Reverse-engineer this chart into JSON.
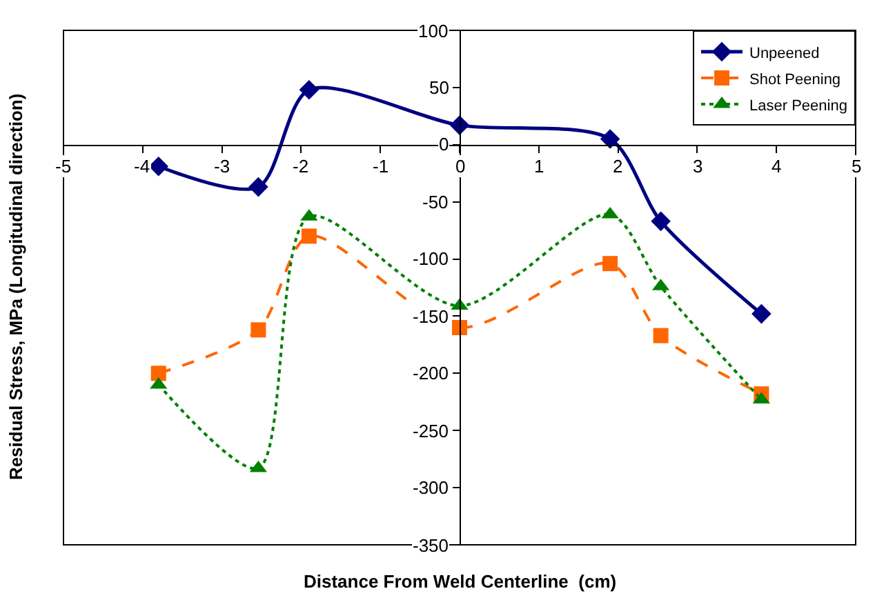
{
  "chart_data": {
    "type": "line",
    "xlabel": "Distance From Weld Centerline  (cm)",
    "ylabel": "Residual Stress, MPa (Longitudinal direction)",
    "xlim": [
      -5,
      5
    ],
    "xticks": [
      -5,
      -4,
      -3,
      -2,
      -1,
      0,
      1,
      2,
      3,
      4,
      5
    ],
    "ylim": [
      -350,
      100
    ],
    "yticks": [
      -350,
      -300,
      -250,
      -200,
      -150,
      -100,
      -50,
      0,
      50,
      100
    ],
    "legend": "top right",
    "series": [
      {
        "name": "Unpeened",
        "color": "#000080",
        "marker": "diamond",
        "line_style": "solid",
        "x": [
          -3.8,
          -2.54,
          -1.9,
          0,
          1.9,
          2.54,
          3.81
        ],
        "values": [
          -19,
          -37,
          48,
          17,
          5,
          -67,
          -148
        ]
      },
      {
        "name": "Shot Peening",
        "color": "#ff6600",
        "marker": "square",
        "line_style": "dashed",
        "x": [
          -3.8,
          -2.54,
          -1.9,
          0,
          1.9,
          2.54,
          3.81
        ],
        "values": [
          -200,
          -162,
          -80,
          -160,
          -104,
          -167,
          -218
        ]
      },
      {
        "name": "Laser Peening",
        "color": "#008000",
        "marker": "triangle",
        "line_style": "dotted",
        "x": [
          -3.8,
          -2.54,
          -1.9,
          0,
          1.9,
          2.54,
          3.81
        ],
        "values": [
          -210,
          -283,
          -63,
          -141,
          -61,
          -124,
          -223
        ]
      }
    ]
  }
}
